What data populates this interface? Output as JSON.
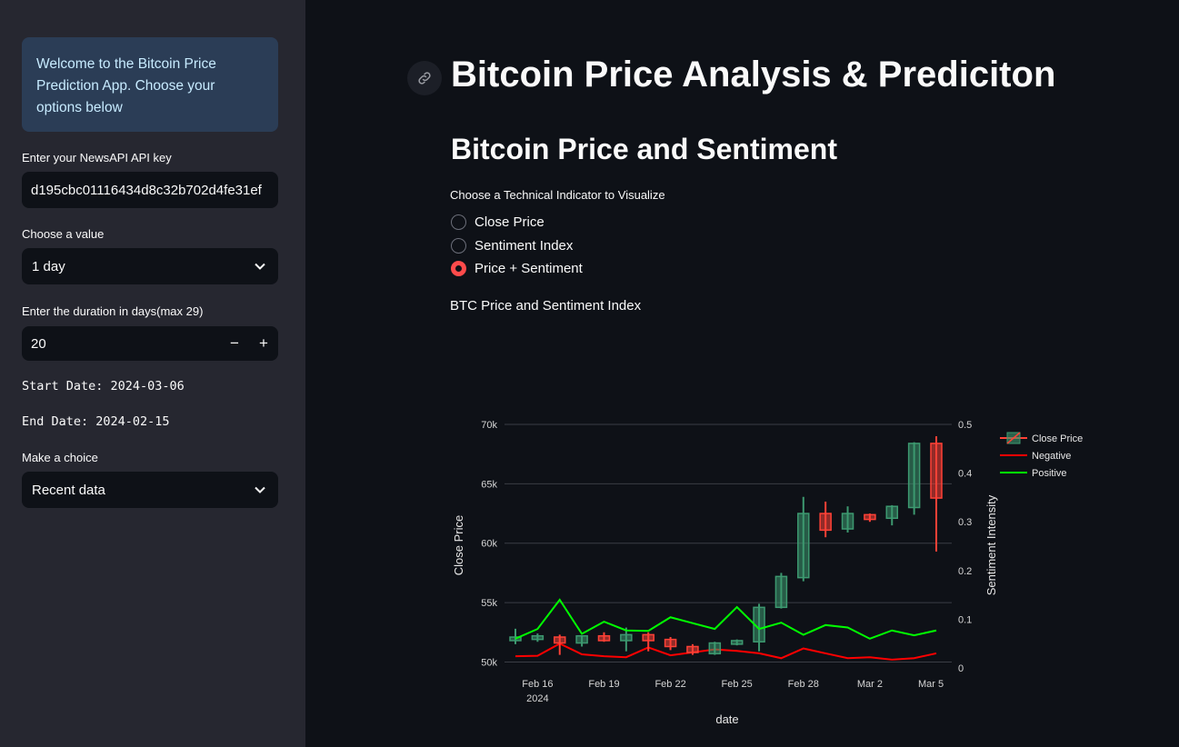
{
  "sidebar": {
    "info": "Welcome to the Bitcoin Price Prediction App. Choose your options below",
    "api_key_label": "Enter your NewsAPI API key",
    "api_key_value": "d195cbc01116434d8c32b702d4fe31ef",
    "interval_label": "Choose a value",
    "interval_value": "1 day",
    "duration_label": "Enter the duration in days(max 29)",
    "duration_value": "20",
    "start_date": "Start Date: 2024-03-06",
    "end_date": "End Date: 2024-02-15",
    "choice_label": "Make a choice",
    "choice_value": "Recent data",
    "minus": "−",
    "plus": "+"
  },
  "main": {
    "title": "Bitcoin Price Analysis & Prediciton",
    "subtitle": "Bitcoin Price and Sentiment",
    "radio_label": "Choose a Technical Indicator to Visualize",
    "radio_options": [
      "Close Price",
      "Sentiment Index",
      "Price + Sentiment"
    ],
    "radio_selected": 2,
    "chart_caption": "BTC Price and Sentiment Index"
  },
  "colors": {
    "increasing": "#3d9970",
    "decreasing": "#ff4136",
    "negative": "#ff0000",
    "positive": "#00ff00",
    "accent": "#ff4b4b"
  },
  "chart_data": {
    "type": "candlestick+line",
    "title": "",
    "xlabel": "date",
    "ylabel": "Close Price",
    "y2label": "Sentiment Intensity",
    "ylim": [
      49500,
      70000
    ],
    "y2lim": [
      0,
      0.5
    ],
    "x_ticks": [
      "Feb 16\n2024",
      "Feb 19",
      "Feb 22",
      "Feb 25",
      "Feb 28",
      "Mar 2",
      "Mar 5"
    ],
    "y_ticks": [
      "50k",
      "55k",
      "60k",
      "65k",
      "70k"
    ],
    "y2_ticks": [
      "0",
      "0.1",
      "0.2",
      "0.3",
      "0.4",
      "0.5"
    ],
    "legend": [
      "Close Price",
      "Negative",
      "Positive"
    ],
    "legend_position": "top-right",
    "dates": [
      "2024-02-15",
      "2024-02-16",
      "2024-02-17",
      "2024-02-18",
      "2024-02-19",
      "2024-02-20",
      "2024-02-21",
      "2024-02-22",
      "2024-02-23",
      "2024-02-24",
      "2024-02-25",
      "2024-02-26",
      "2024-02-27",
      "2024-02-28",
      "2024-02-29",
      "2024-03-01",
      "2024-03-02",
      "2024-03-03",
      "2024-03-04",
      "2024-03-05"
    ],
    "candles": [
      {
        "open": 51800,
        "high": 52800,
        "low": 51500,
        "close": 52100
      },
      {
        "open": 51900,
        "high": 52400,
        "low": 51700,
        "close": 52200
      },
      {
        "open": 52100,
        "high": 52300,
        "low": 50600,
        "close": 51600
      },
      {
        "open": 51600,
        "high": 52200,
        "low": 51300,
        "close": 52200
      },
      {
        "open": 52200,
        "high": 52500,
        "low": 51700,
        "close": 51800
      },
      {
        "open": 51800,
        "high": 52900,
        "low": 50900,
        "close": 52300
      },
      {
        "open": 52300,
        "high": 52500,
        "low": 50900,
        "close": 51800
      },
      {
        "open": 51900,
        "high": 52100,
        "low": 51000,
        "close": 51300
      },
      {
        "open": 51300,
        "high": 51500,
        "low": 50600,
        "close": 50800
      },
      {
        "open": 50700,
        "high": 51700,
        "low": 50600,
        "close": 51600
      },
      {
        "open": 51500,
        "high": 51900,
        "low": 51400,
        "close": 51800
      },
      {
        "open": 51700,
        "high": 54900,
        "low": 50900,
        "close": 54600
      },
      {
        "open": 54600,
        "high": 57500,
        "low": 54500,
        "close": 57200
      },
      {
        "open": 57100,
        "high": 63900,
        "low": 56800,
        "close": 62500
      },
      {
        "open": 62500,
        "high": 63500,
        "low": 60500,
        "close": 61100
      },
      {
        "open": 61200,
        "high": 63100,
        "low": 60900,
        "close": 62500
      },
      {
        "open": 62400,
        "high": 62500,
        "low": 61800,
        "close": 62000
      },
      {
        "open": 62100,
        "high": 63200,
        "low": 61500,
        "close": 63100
      },
      {
        "open": 63000,
        "high": 68500,
        "low": 62400,
        "close": 68400
      },
      {
        "open": 68400,
        "high": 69000,
        "low": 59300,
        "close": 63800
      }
    ],
    "series": [
      {
        "name": "Negative",
        "values": [
          0.024,
          0.025,
          0.05,
          0.028,
          0.024,
          0.022,
          0.042,
          0.026,
          0.032,
          0.038,
          0.035,
          0.03,
          0.02,
          0.04,
          0.03,
          0.02,
          0.022,
          0.017,
          0.02,
          0.03
        ]
      },
      {
        "name": "Positive",
        "values": [
          0.06,
          0.08,
          0.14,
          0.07,
          0.095,
          0.077,
          0.076,
          0.104,
          0.092,
          0.08,
          0.125,
          0.08,
          0.093,
          0.068,
          0.088,
          0.083,
          0.06,
          0.077,
          0.067,
          0.077
        ]
      }
    ]
  }
}
